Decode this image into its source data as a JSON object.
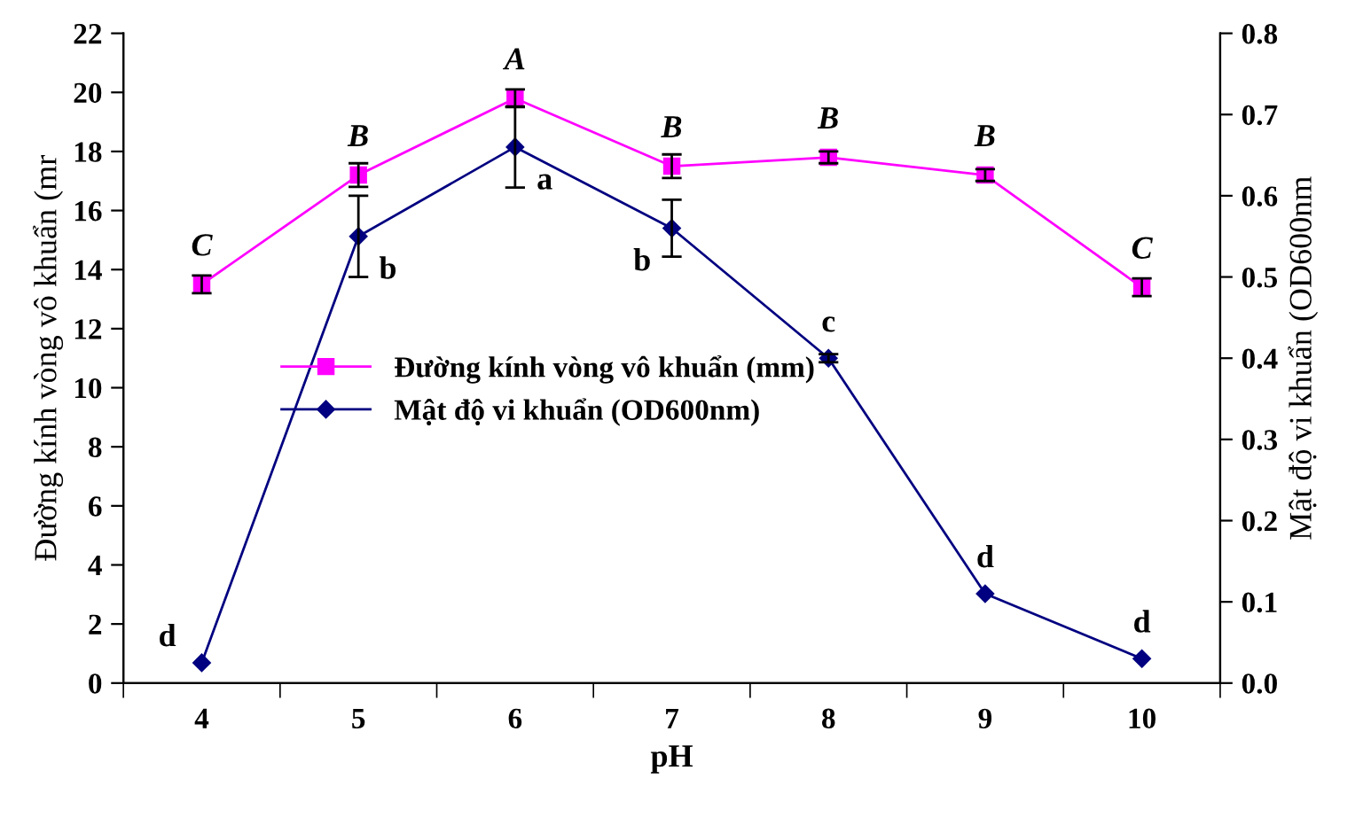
{
  "chart_data": {
    "type": "line",
    "xlabel": "pH",
    "ylabel": "Đường kính vòng vô khuẩn (mr",
    "y2label": "Mật độ vi khuẩn (OD600nm",
    "categories": [
      "4",
      "5",
      "6",
      "7",
      "8",
      "9",
      "10"
    ],
    "series": [
      {
        "name": "Đường kính vòng vô khuẩn (mm)",
        "color": "#ff00ff",
        "marker": "square",
        "values": [
          13.5,
          17.2,
          19.8,
          17.5,
          17.8,
          17.2,
          13.4
        ],
        "errors": [
          0.3,
          0.4,
          0.3,
          0.4,
          0.2,
          0.2,
          0.3
        ],
        "value_labels": [
          "C",
          "B",
          "A",
          "B",
          "B",
          "B",
          "C"
        ]
      },
      {
        "name": "Mật độ vi khuẩn (OD600nm)",
        "color": "#000080",
        "marker": "diamond",
        "axis": "y2",
        "values": [
          0.025,
          0.55,
          0.66,
          0.56,
          0.4,
          0.11,
          0.03
        ],
        "errors": [
          null,
          0.05,
          0.05,
          0.035,
          0.005,
          null,
          null
        ],
        "value_labels": [
          "d",
          "b",
          "a",
          "b",
          "c",
          "d",
          "d"
        ]
      }
    ],
    "ylim": [
      0,
      22
    ],
    "yticks": [
      0,
      2,
      4,
      6,
      8,
      10,
      12,
      14,
      16,
      18,
      20,
      22
    ],
    "y2lim": [
      0,
      0.8
    ],
    "y2ticks": [
      {
        "value": 0,
        "label": "0.0"
      },
      0.1,
      0.2,
      0.3,
      0.4,
      0.5,
      0.6,
      0.7,
      0.8
    ],
    "grid": false,
    "legend": "left"
  }
}
